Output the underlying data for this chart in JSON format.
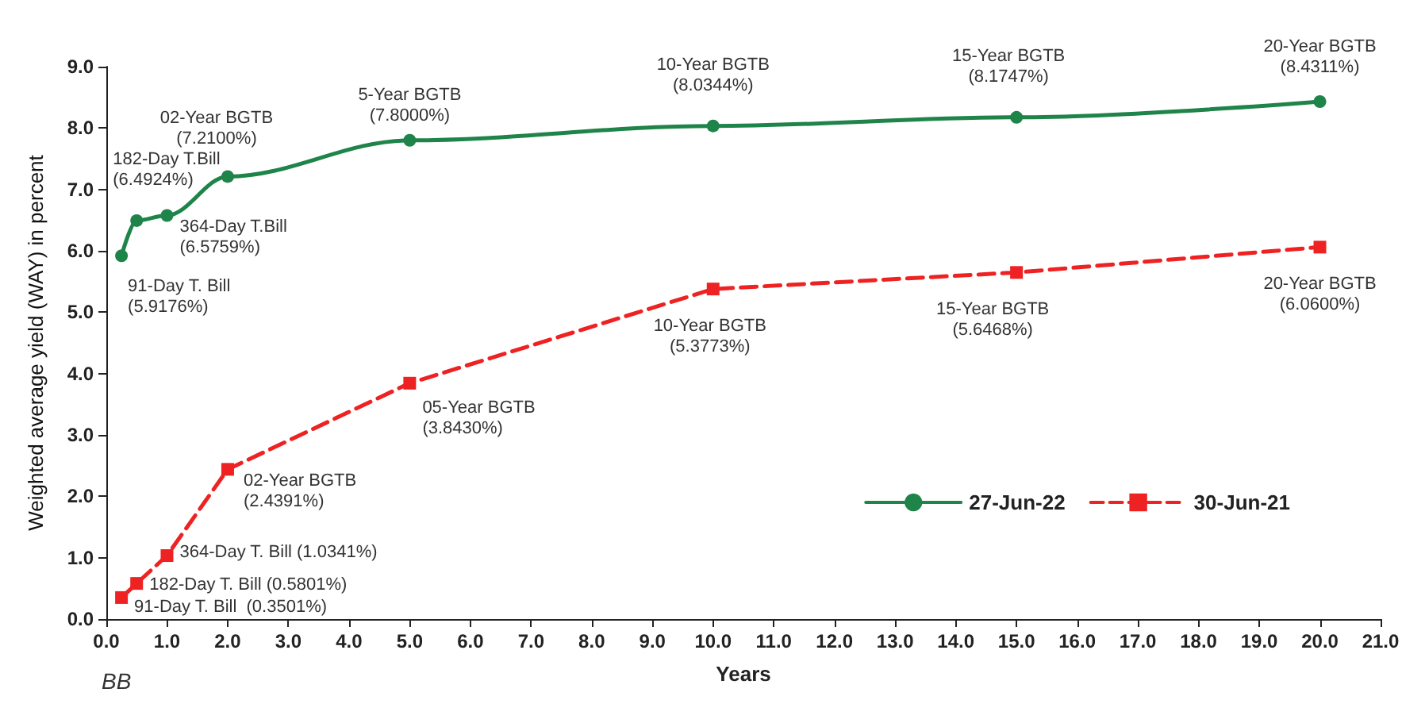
{
  "chart_data": {
    "type": "line",
    "xlabel": "Years",
    "ylabel": "Weighted average yield (WAY) in percent",
    "annotations": [
      "BB"
    ],
    "x": [
      0.25,
      0.5,
      1,
      2,
      5,
      10,
      15,
      20
    ],
    "xlim": [
      0,
      21
    ],
    "xticks": [
      {
        "value": 0,
        "label": "0.0"
      },
      {
        "value": 1,
        "label": "1.0"
      },
      {
        "value": 2,
        "label": "2.0"
      },
      {
        "value": 3,
        "label": "3.0"
      },
      {
        "value": 4,
        "label": "4.0"
      },
      {
        "value": 5,
        "label": "5.0"
      },
      {
        "value": 6,
        "label": "6.0"
      },
      {
        "value": 7,
        "label": "7.0"
      },
      {
        "value": 8,
        "label": "8.0"
      },
      {
        "value": 9,
        "label": "9.0"
      },
      {
        "value": 10,
        "label": "10.0"
      },
      {
        "value": 11,
        "label": "11.0"
      },
      {
        "value": 12,
        "label": "12.0"
      },
      {
        "value": 13,
        "label": "13.0"
      },
      {
        "value": 14,
        "label": "14.0"
      },
      {
        "value": 15,
        "label": "15.0"
      },
      {
        "value": 16,
        "label": "16.0"
      },
      {
        "value": 17,
        "label": "17.0"
      },
      {
        "value": 18,
        "label": "18.0"
      },
      {
        "value": 19,
        "label": "19.0"
      },
      {
        "value": 20,
        "label": "20.0"
      },
      {
        "value": 21,
        "label": "21.0"
      }
    ],
    "ylim": [
      0,
      9
    ],
    "yticks": [
      {
        "value": 0,
        "label": "0.0"
      },
      {
        "value": 1,
        "label": "1.0"
      },
      {
        "value": 2,
        "label": "2.0"
      },
      {
        "value": 3,
        "label": "3.0"
      },
      {
        "value": 4,
        "label": "4.0"
      },
      {
        "value": 5,
        "label": "5.0"
      },
      {
        "value": 6,
        "label": "6.0"
      },
      {
        "value": 7,
        "label": "7.0"
      },
      {
        "value": 8,
        "label": "8.0"
      },
      {
        "value": 9,
        "label": "9.0"
      }
    ],
    "grid": false,
    "legend": "bottom right",
    "series": [
      {
        "name": "27-Jun-22",
        "color": "#1e8449",
        "marker": "circle",
        "line_style": "solid",
        "values": [
          5.9176,
          6.4924,
          6.5759,
          7.21,
          7.8,
          8.0344,
          8.1747,
          8.4311
        ],
        "value_labels": [
          "91-Day T. Bill\n(5.9176%)",
          "182-Day T.Bill\n(6.4924%)",
          "364-Day T.Bill\n(6.5759%)",
          "02-Year BGTB\n(7.2100%)",
          "5-Year BGTB\n(7.8000%)",
          "10-Year BGTB\n(8.0344%)",
          "15-Year BGTB\n(8.1747%)",
          "20-Year BGTB\n(8.4311%)"
        ]
      },
      {
        "name": "30-Jun-21",
        "color": "#ee2222",
        "marker": "square",
        "line_style": "dashed",
        "values": [
          0.3501,
          0.5801,
          1.0341,
          2.4391,
          3.843,
          5.3773,
          5.6468,
          6.06
        ],
        "value_labels": [
          "91-Day T. Bill  (0.3501%)",
          "182-Day T. Bill (0.5801%)",
          "364-Day T. Bill (1.0341%)",
          "02-Year BGTB\n(2.4391%)",
          "05-Year BGTB\n(3.8430%)",
          "10-Year BGTB\n(5.3773%)",
          "15-Year BGTB\n(5.6468%)",
          "20-Year BGTB\n(6.0600%)"
        ]
      }
    ]
  }
}
